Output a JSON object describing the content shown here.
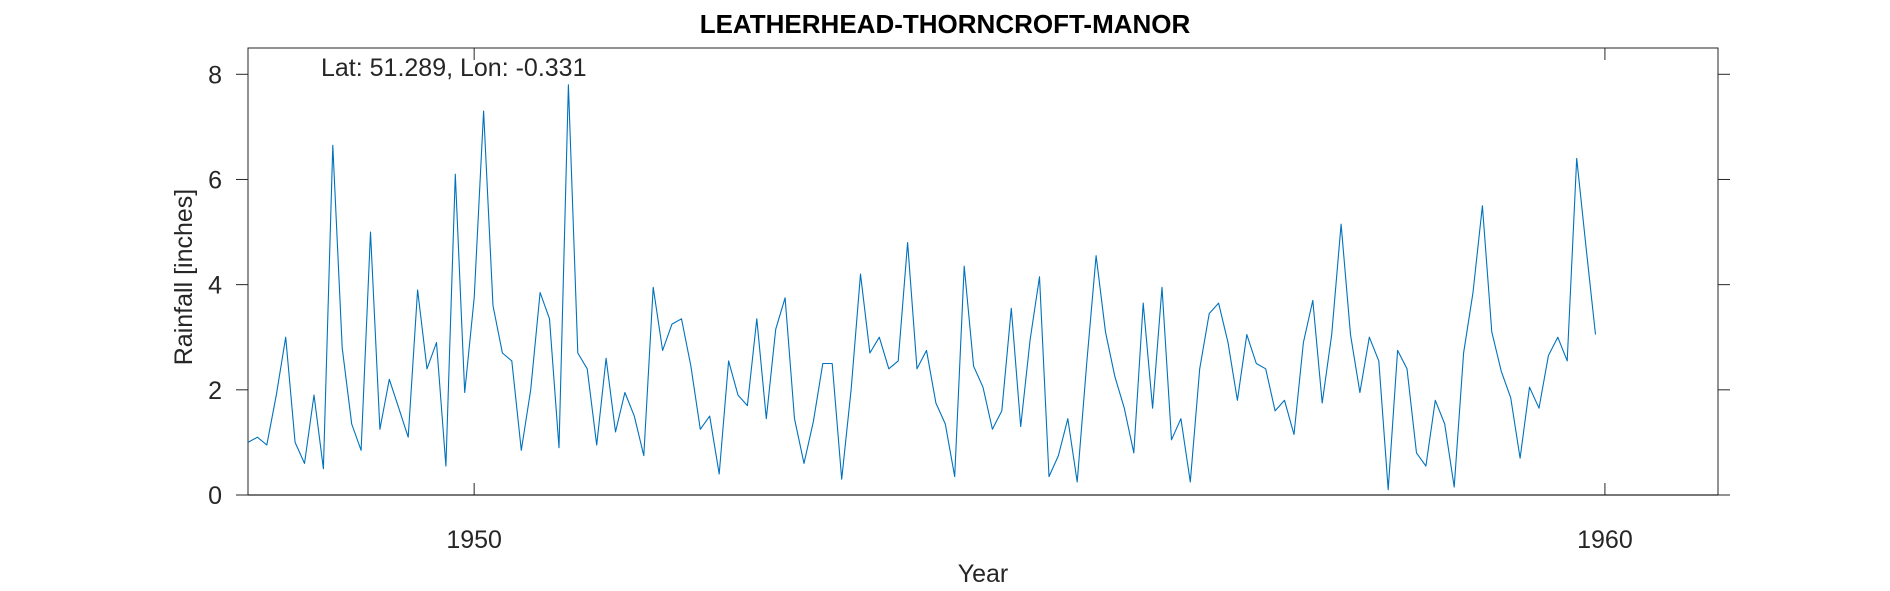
{
  "chart_data": {
    "type": "line",
    "title": "LEATHERHEAD-THORNCROFT-MANOR",
    "annotation": "Lat: 51.289, Lon: -0.331",
    "xlabel": "Year",
    "ylabel": "Rainfall [inches]",
    "xlim": [
      1948.0,
      1961.0
    ],
    "ylim": [
      0,
      8.5
    ],
    "xticks": [
      1950,
      1960
    ],
    "yticks": [
      0,
      2,
      4,
      6,
      8
    ],
    "xtick_labels": [
      "1950",
      "1960"
    ],
    "ytick_labels": [
      "0",
      "2",
      "4",
      "6",
      "8"
    ],
    "grid": false,
    "series_color": "#0072bd",
    "x_start": "Jan 1948",
    "step_months": 1,
    "series": [
      {
        "values": [
          1.0,
          1.1,
          0.95,
          1.9,
          3.0,
          1.0,
          0.6,
          1.9,
          0.5,
          6.65,
          2.8,
          1.35,
          0.85,
          5.0,
          1.25,
          2.2,
          1.65,
          1.1,
          3.9,
          2.4,
          2.9,
          0.55,
          6.1,
          1.95,
          3.75,
          7.3,
          3.6,
          2.7,
          2.55,
          0.85,
          2.0,
          3.85,
          3.35,
          0.9,
          7.8,
          2.7,
          2.4,
          0.95,
          2.6,
          1.2,
          1.95,
          1.5,
          0.75,
          3.95,
          2.75,
          3.25,
          3.35,
          2.45,
          1.25,
          1.5,
          0.4,
          2.55,
          1.9,
          1.7,
          3.35,
          1.45,
          3.15,
          3.75,
          1.45,
          0.6,
          1.4,
          2.5,
          2.5,
          0.3,
          2.0,
          4.2,
          2.7,
          3.0,
          2.4,
          2.55,
          4.8,
          2.4,
          2.75,
          1.75,
          1.35,
          0.35,
          4.35,
          2.45,
          2.05,
          1.25,
          1.6,
          3.55,
          1.3,
          2.95,
          4.15,
          0.35,
          0.75,
          1.45,
          0.25,
          2.5,
          4.55,
          3.1,
          2.25,
          1.65,
          0.8,
          3.65,
          1.65,
          3.95,
          1.05,
          1.45,
          0.25,
          2.4,
          3.45,
          3.65,
          2.9,
          1.8,
          3.05,
          2.5,
          2.4,
          1.6,
          1.8,
          1.15,
          2.9,
          3.7,
          1.75,
          3.05,
          5.15,
          3.05,
          1.95,
          3.0,
          2.55,
          0.1,
          2.75,
          2.4,
          0.8,
          0.55,
          1.8,
          1.35,
          0.15,
          2.7,
          3.85,
          5.5,
          3.1,
          2.35,
          1.85,
          0.7,
          2.05,
          1.65,
          2.65,
          3.0,
          2.55,
          6.4,
          4.7,
          3.05
        ]
      }
    ]
  }
}
